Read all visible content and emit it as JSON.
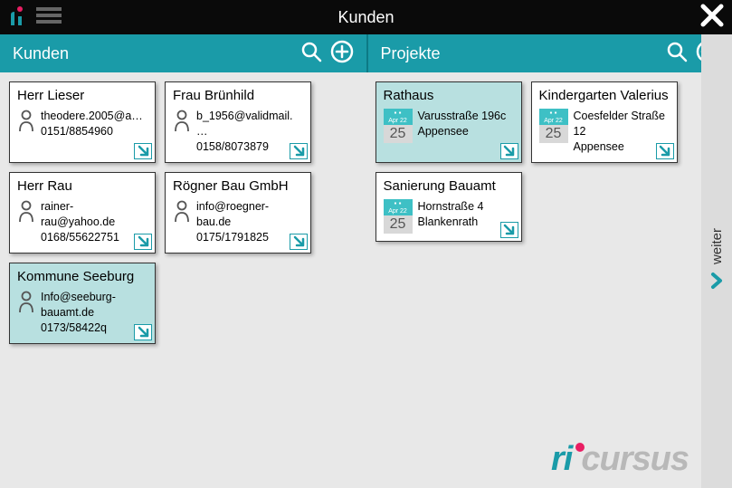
{
  "colors": {
    "teal": "#1a9ba8",
    "tealLight": "#b8e0e0",
    "pink": "#e91e63",
    "black": "#0a0a0a",
    "gray": "#b8b8b8"
  },
  "topbar": {
    "title": "Kunden"
  },
  "sidebar": {
    "label": "weiter"
  },
  "footer": {
    "brand_accent": "ri",
    "brand_rest": "cursus"
  },
  "leftCol": {
    "title": "Kunden",
    "cards": [
      {
        "title": "Herr Lieser",
        "line1": "theodere.2005@a…",
        "line2": "0151/8854960",
        "selected": false
      },
      {
        "title": "Frau Brünhild",
        "line1": "b_1956@validmail.…",
        "line2": "0158/8073879",
        "selected": false
      },
      {
        "title": "Herr Rau",
        "line1": "rainer-rau@yahoo.de",
        "line2": "0168/55622751",
        "selected": false
      },
      {
        "title": "Rögner Bau GmbH",
        "line1": "info@roegner-bau.de",
        "line2": "0175/1791825",
        "selected": false
      },
      {
        "title": "Kommune Seeburg",
        "line1": "Info@seeburg-bauamt.de",
        "line2": "0173/58422q",
        "selected": true
      }
    ]
  },
  "rightCol": {
    "title": "Projekte",
    "cards": [
      {
        "title": "Rathaus",
        "date_top": "Apr 22",
        "date_day": "25",
        "line1": "Varusstraße 196c",
        "line2": "Appensee",
        "selected": true
      },
      {
        "title": "Kindergarten Valerius",
        "date_top": "Apr 22",
        "date_day": "25",
        "line1": "Coesfelder Straße 12",
        "line2": "Appensee",
        "selected": false
      },
      {
        "title": "Sanierung Bauamt",
        "date_top": "Apr 22",
        "date_day": "25",
        "line1": "Hornstraße 4",
        "line2": "Blankenrath",
        "selected": false
      }
    ]
  }
}
